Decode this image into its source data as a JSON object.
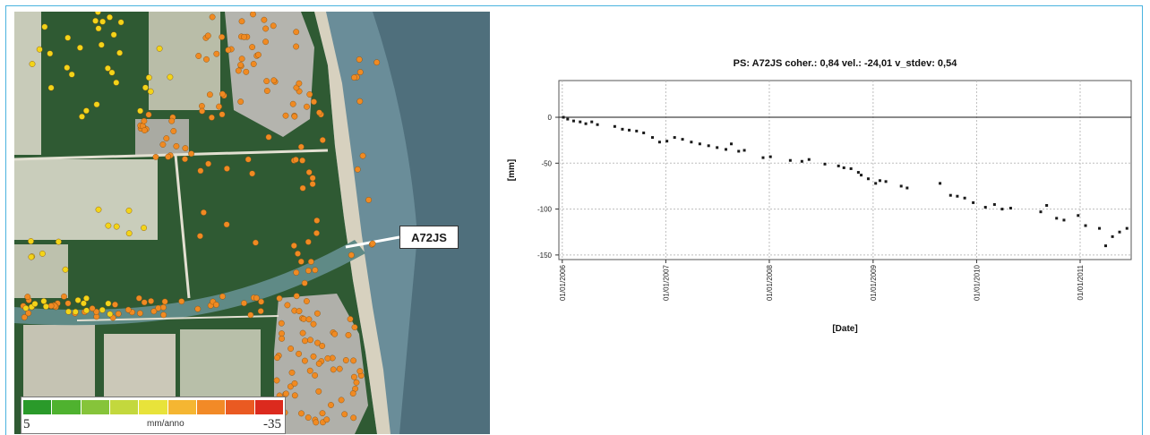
{
  "map": {
    "callout_label": "A72JS",
    "legend": {
      "min_label": "5",
      "unit_label": "mm/anno",
      "max_label": "-35",
      "colors": [
        "#2a9a2a",
        "#4fb22f",
        "#86c43a",
        "#c3d83d",
        "#e8e33a",
        "#f5b632",
        "#f28a27",
        "#ea5a22",
        "#dc2a1e"
      ]
    },
    "colors": {
      "sea": "#6a8d99",
      "deep_sea": "#4f6f7c",
      "farmland_dark": "#2f5a33",
      "farmland_light": "#c8cbb9",
      "urban": "#b4b4ae",
      "beach": "#d7d1bf",
      "point_yellow": "#f3d419",
      "point_orange": "#f08a22"
    }
  },
  "chart_data": {
    "type": "scatter",
    "title": "PS: A72JS coher.: 0,84 vel.: -24,01 v_stdev: 0,54",
    "xlabel": "[Date]",
    "ylabel": "[mm]",
    "x_ticks": [
      "01/01/2006",
      "01/01/2007",
      "01/01/2008",
      "01/01/2009",
      "01/01/2010",
      "01/01/2011"
    ],
    "y_ticks": [
      0,
      -50,
      -100,
      -150
    ],
    "xlim": [
      "2005-12-20",
      "2011-06-30"
    ],
    "ylim": [
      -155,
      40
    ],
    "grid": true,
    "reference_line_y": 0,
    "point_color": "#1a1a1a",
    "points": [
      [
        "2006-01-05",
        0
      ],
      [
        "2006-01-20",
        -2
      ],
      [
        "2006-02-10",
        -4
      ],
      [
        "2006-03-05",
        -5
      ],
      [
        "2006-03-25",
        -7
      ],
      [
        "2006-04-15",
        -5
      ],
      [
        "2006-05-05",
        -8
      ],
      [
        "2006-07-05",
        -10
      ],
      [
        "2006-08-01",
        -13
      ],
      [
        "2006-08-25",
        -14
      ],
      [
        "2006-09-20",
        -15
      ],
      [
        "2006-10-15",
        -17
      ],
      [
        "2006-11-15",
        -22
      ],
      [
        "2006-12-10",
        -27
      ],
      [
        "2007-01-05",
        -26
      ],
      [
        "2007-02-01",
        -22
      ],
      [
        "2007-03-01",
        -24
      ],
      [
        "2007-04-01",
        -27
      ],
      [
        "2007-05-01",
        -29
      ],
      [
        "2007-06-01",
        -31
      ],
      [
        "2007-07-01",
        -33
      ],
      [
        "2007-08-01",
        -35
      ],
      [
        "2007-08-20",
        -29
      ],
      [
        "2007-09-15",
        -37
      ],
      [
        "2007-10-05",
        -36
      ],
      [
        "2007-12-10",
        -44
      ],
      [
        "2008-01-05",
        -43
      ],
      [
        "2008-03-15",
        -47
      ],
      [
        "2008-04-25",
        -48
      ],
      [
        "2008-05-20",
        -46
      ],
      [
        "2008-07-15",
        -51
      ],
      [
        "2008-09-01",
        -53
      ],
      [
        "2008-09-20",
        -55
      ],
      [
        "2008-10-15",
        -56
      ],
      [
        "2008-11-10",
        -60
      ],
      [
        "2008-11-20",
        -63
      ],
      [
        "2008-12-15",
        -67
      ],
      [
        "2009-01-10",
        -72
      ],
      [
        "2009-01-25",
        -69
      ],
      [
        "2009-02-15",
        -70
      ],
      [
        "2009-04-10",
        -75
      ],
      [
        "2009-05-01",
        -77
      ],
      [
        "2009-08-25",
        -72
      ],
      [
        "2009-10-01",
        -85
      ],
      [
        "2009-10-25",
        -86
      ],
      [
        "2009-11-20",
        -88
      ],
      [
        "2009-12-20",
        -93
      ],
      [
        "2010-02-01",
        -98
      ],
      [
        "2010-03-05",
        -95
      ],
      [
        "2010-04-01",
        -100
      ],
      [
        "2010-05-01",
        -99
      ],
      [
        "2010-08-15",
        -103
      ],
      [
        "2010-09-05",
        -96
      ],
      [
        "2010-10-10",
        -110
      ],
      [
        "2010-11-05",
        -112
      ],
      [
        "2010-12-25",
        -107
      ],
      [
        "2011-01-20",
        -118
      ],
      [
        "2011-03-10",
        -121
      ],
      [
        "2011-04-01",
        -140
      ],
      [
        "2011-04-25",
        -130
      ],
      [
        "2011-05-20",
        -125
      ],
      [
        "2011-06-15",
        -121
      ]
    ]
  }
}
